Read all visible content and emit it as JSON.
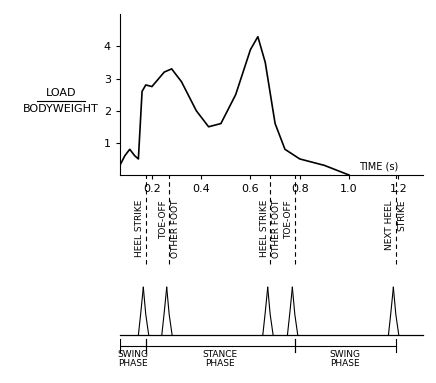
{
  "chart_data": {
    "type": "line",
    "ylabel": {
      "numerator": "LOAD",
      "denominator": "BODYWEIGHT"
    },
    "xlabel": "TIME (s)",
    "x": [
      0.07,
      0.09,
      0.11,
      0.13,
      0.145,
      0.16,
      0.175,
      0.2,
      0.25,
      0.28,
      0.32,
      0.38,
      0.43,
      0.48,
      0.54,
      0.6,
      0.63,
      0.66,
      0.7,
      0.74,
      0.8,
      0.9,
      1.0
    ],
    "values": [
      0.3,
      0.6,
      0.8,
      0.6,
      0.5,
      2.6,
      2.8,
      2.75,
      3.2,
      3.3,
      2.9,
      2.0,
      1.5,
      1.6,
      2.5,
      3.9,
      4.3,
      3.5,
      1.6,
      0.8,
      0.5,
      0.3,
      0.0
    ],
    "color": "#000000",
    "xlim": [
      0.07,
      1.3
    ],
    "ylim": [
      0,
      5
    ],
    "xticks": [
      0.2,
      0.4,
      0.6,
      0.8,
      1.0,
      1.2
    ],
    "yticks": [
      1,
      2,
      3,
      4
    ],
    "grid": false,
    "events": [
      {
        "x": 0.175,
        "lines": [
          "HEEL STRIKE"
        ]
      },
      {
        "x": 0.27,
        "lines": [
          "TOE-OFF",
          "OTHER FOOT"
        ]
      },
      {
        "x": 0.68,
        "lines": [
          "HEEL STRIKE",
          "OTHER FOOT"
        ]
      },
      {
        "x": 0.78,
        "lines": [
          "TOE-OFF"
        ]
      },
      {
        "x": 1.19,
        "lines": [
          "NEXT HEEL",
          "STRIKE"
        ]
      }
    ],
    "phases": [
      {
        "start": 0.07,
        "end": 0.175,
        "lines": [
          "SWING",
          "PHASE"
        ]
      },
      {
        "start": 0.175,
        "end": 0.78,
        "lines": [
          "STANCE",
          "PHASE"
        ]
      },
      {
        "start": 0.78,
        "end": 1.19,
        "lines": [
          "SWING",
          "PHASE"
        ]
      }
    ]
  }
}
